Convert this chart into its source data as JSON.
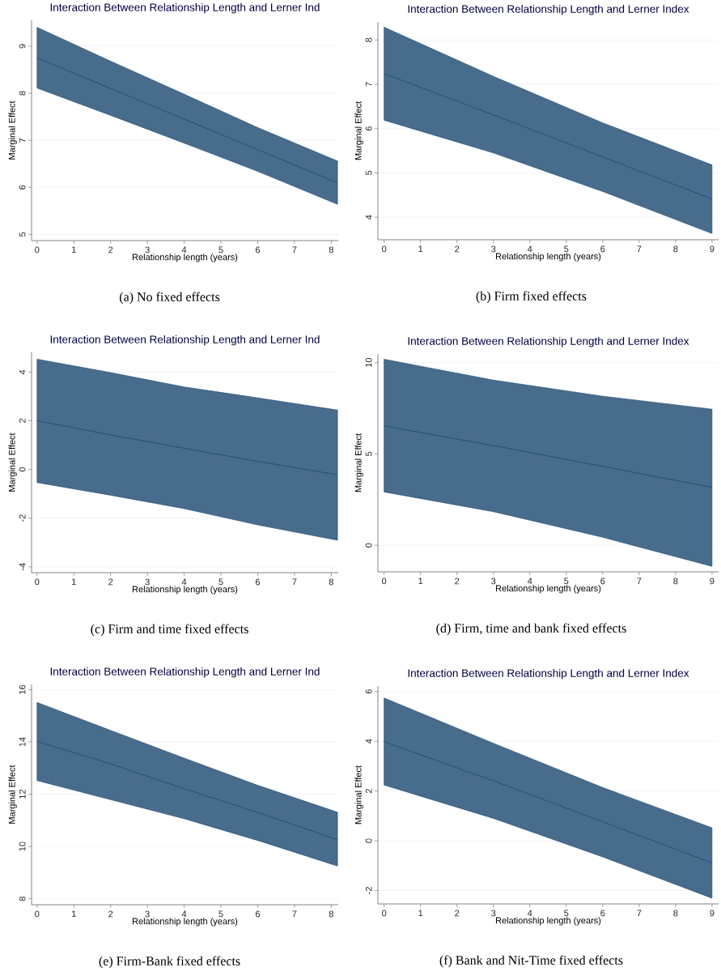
{
  "chart_data": [
    {
      "type": "line",
      "title": "Interaction Between Relationship Length and Lerner Ind",
      "xlabel": "Relationship length (years)",
      "ylabel": "Marginal Effect",
      "annotations": [
        "(a) No fixed effects"
      ],
      "x": [
        0,
        2,
        4,
        6,
        8.17
      ],
      "xlim": [
        -0.15,
        8.19
      ],
      "xticks": [
        0,
        1,
        2,
        3,
        4,
        5,
        6,
        7,
        8
      ],
      "ylim": [
        4.87,
        9.55
      ],
      "yticks": [
        5,
        6,
        7,
        8,
        9
      ],
      "grid": "y",
      "series": [
        {
          "color": "#1a476f",
          "values": [
            8.75,
            8.1,
            7.45,
            6.8,
            6.1
          ],
          "lower": [
            8.11,
            7.53,
            6.94,
            6.34,
            5.64
          ],
          "upper": [
            9.4,
            8.68,
            7.98,
            7.27,
            6.56
          ]
        }
      ]
    },
    {
      "type": "line",
      "title": "Interaction Between Relationship Length and Lerner Index",
      "xlabel": "Relationship length (years)",
      "ylabel": "Marginal Effect",
      "annotations": [
        "(b) Firm fixed effects"
      ],
      "x": [
        0,
        3,
        6,
        9
      ],
      "xlim": [
        -0.17,
        9.18
      ],
      "xticks": [
        0,
        1,
        2,
        3,
        4,
        5,
        6,
        7,
        8,
        9
      ],
      "ylim": [
        3.49,
        8.41
      ],
      "yticks": [
        4,
        5,
        6,
        7,
        8
      ],
      "grid": "y",
      "series": [
        {
          "color": "#1a476f",
          "values": [
            7.24,
            6.31,
            5.36,
            4.41
          ],
          "lower": [
            6.19,
            5.45,
            4.58,
            3.63
          ],
          "upper": [
            8.29,
            7.18,
            6.13,
            5.18
          ]
        }
      ]
    },
    {
      "type": "line",
      "title": "Interaction Between Relationship Length and Lerner Ind",
      "xlabel": "Relationship length (years)",
      "ylabel": "Marginal Effect",
      "annotations": [
        "(c) Firm and time fixed effects"
      ],
      "x": [
        0,
        2,
        4,
        6,
        8.17
      ],
      "xlim": [
        -0.15,
        8.19
      ],
      "xticks": [
        0,
        1,
        2,
        3,
        4,
        5,
        6,
        7,
        8
      ],
      "ylim": [
        -4.24,
        4.81
      ],
      "yticks": [
        -4,
        -2,
        0,
        2,
        4
      ],
      "grid": "y",
      "series": [
        {
          "color": "#1a476f",
          "values": [
            2.0,
            1.42,
            0.87,
            0.33,
            -0.22
          ],
          "lower": [
            -0.54,
            -1.06,
            -1.61,
            -2.28,
            -2.91
          ],
          "upper": [
            4.53,
            3.98,
            3.39,
            2.94,
            2.44
          ]
        }
      ]
    },
    {
      "type": "line",
      "title": "Interaction Between Relationship Length and Lerner Index",
      "xlabel": "Relationship length (years)",
      "ylabel": "Marginal Effect",
      "annotations": [
        "(d) Firm, time and bank fixed effects"
      ],
      "x": [
        0,
        3,
        6,
        9
      ],
      "xlim": [
        -0.17,
        9.18
      ],
      "xticks": [
        0,
        1,
        2,
        3,
        4,
        5,
        6,
        7,
        8,
        9
      ],
      "ylim": [
        -1.45,
        10.47
      ],
      "yticks": [
        0,
        5,
        10
      ],
      "grid": "y",
      "series": [
        {
          "color": "#1a476f",
          "values": [
            6.53,
            5.46,
            4.32,
            3.17
          ],
          "lower": [
            2.92,
            1.84,
            0.44,
            -1.15
          ],
          "upper": [
            10.18,
            9.04,
            8.16,
            7.45
          ]
        }
      ]
    },
    {
      "type": "line",
      "title": "Interaction Between Relationship Length and Lerner Ind",
      "xlabel": "Relationship length (years)",
      "ylabel": "Marginal Effect",
      "annotations": [
        "(e) Firm-Bank fixed effects"
      ],
      "x": [
        0,
        2,
        4,
        6,
        8.17
      ],
      "xlim": [
        -0.15,
        8.19
      ],
      "xticks": [
        0,
        1,
        2,
        3,
        4,
        5,
        6,
        7,
        8
      ],
      "ylim": [
        7.77,
        16.2
      ],
      "yticks": [
        8,
        10,
        12,
        14,
        16
      ],
      "grid": "y",
      "series": [
        {
          "color": "#1a476f",
          "values": [
            14.02,
            13.16,
            12.21,
            11.3,
            10.26
          ],
          "lower": [
            12.52,
            11.79,
            11.06,
            10.23,
            9.25
          ],
          "upper": [
            15.51,
            14.44,
            13.38,
            12.34,
            11.31
          ]
        }
      ]
    },
    {
      "type": "line",
      "title": "Interaction Between Relationship Length and Lerner Index",
      "xlabel": "Relationship length (years)",
      "ylabel": "Marginal Effect",
      "annotations": [
        "(f) Bank and Nit-Time fixed effects"
      ],
      "x": [
        0,
        3,
        6,
        9
      ],
      "xlim": [
        -0.17,
        9.18
      ],
      "xticks": [
        0,
        1,
        2,
        3,
        4,
        5,
        6,
        7,
        8,
        9
      ],
      "ylim": [
        -2.54,
        6.22
      ],
      "yticks": [
        -2,
        0,
        2,
        4,
        6
      ],
      "grid": "y",
      "series": [
        {
          "color": "#1a476f",
          "values": [
            3.98,
            2.41,
            0.76,
            -0.89
          ],
          "lower": [
            2.24,
            0.9,
            -0.65,
            -2.31
          ],
          "upper": [
            5.74,
            3.92,
            2.14,
            0.52
          ]
        }
      ]
    }
  ]
}
